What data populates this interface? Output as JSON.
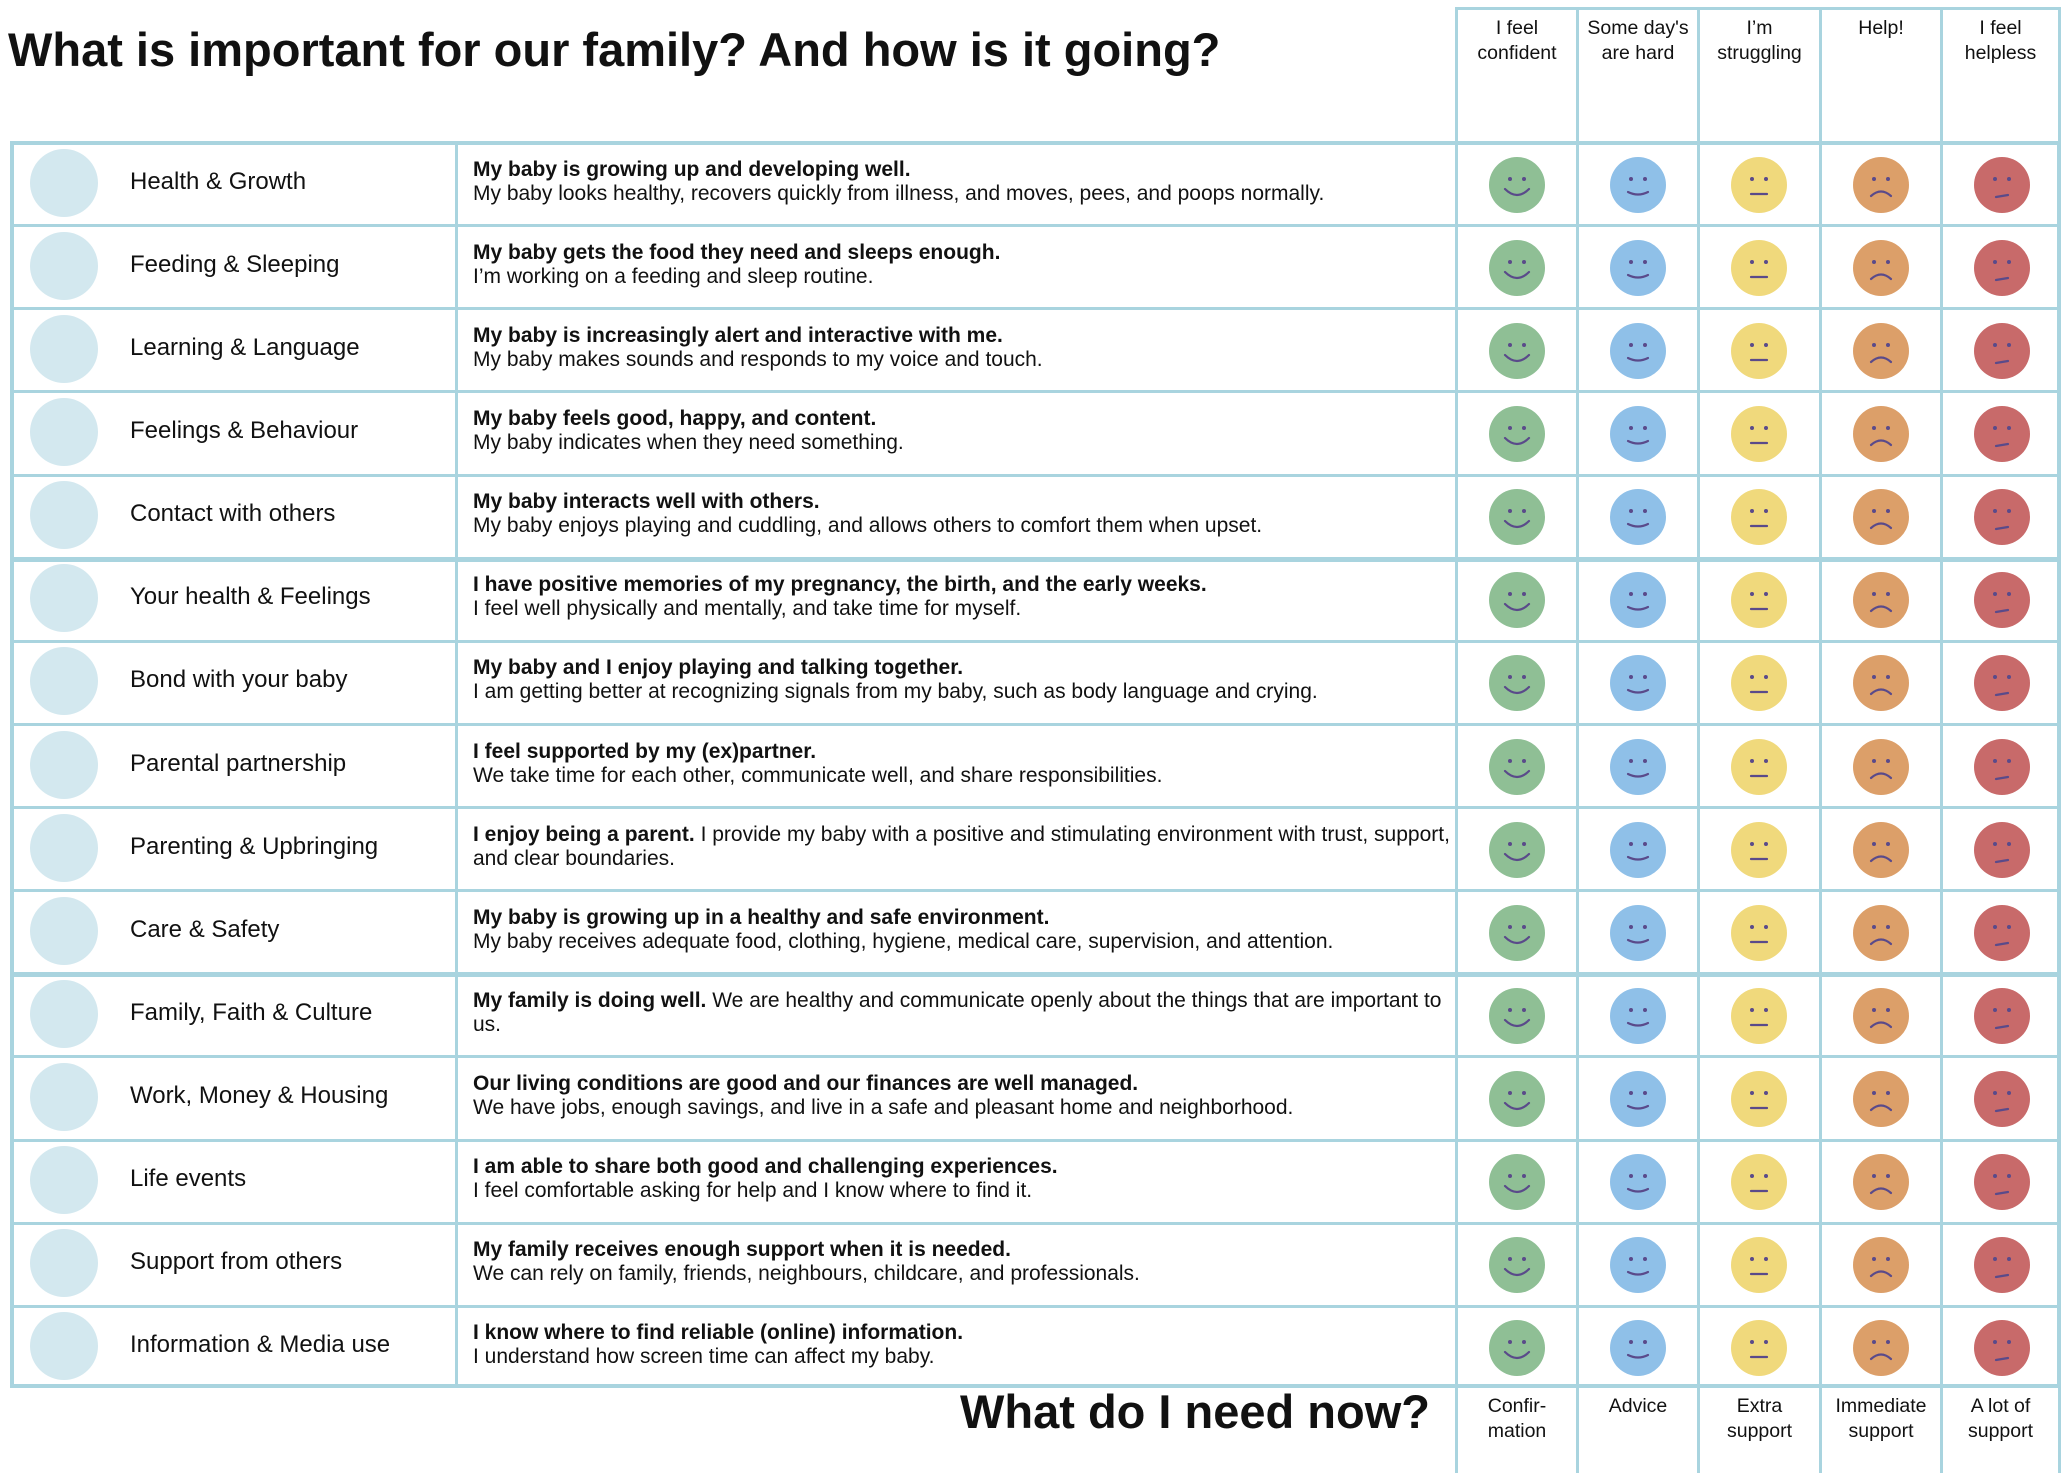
{
  "header": {
    "title": "What is important for our family? And how is it going?",
    "columns": [
      "I feel confident",
      "Some day's are hard",
      "I’m struggling",
      "Help!",
      "I feel helpless"
    ]
  },
  "rows": [
    {
      "topic": "Health & Growth",
      "bold": "My baby is growing up and developing well.",
      "text": "My baby looks healthy, recovers quickly from illness, and moves, pees, and poops normally."
    },
    {
      "topic": "Feeding & Sleeping",
      "bold": "My baby gets the food they need and sleeps enough.",
      "text": "I’m working on a feeding and sleep routine."
    },
    {
      "topic": "Learning & Language",
      "bold": "My baby is increasingly alert and interactive with me.",
      "text": "My baby makes sounds and responds to my voice and touch."
    },
    {
      "topic": "Feelings & Behaviour",
      "bold": "My baby feels good, happy, and content.",
      "text": "My baby indicates when they need something."
    },
    {
      "topic": "Contact with others",
      "bold": "My baby interacts well with others.",
      "text": "My baby enjoys playing and cuddling, and allows others to comfort them when upset."
    },
    {
      "topic": "Your health & Feelings",
      "bold": "I have positive memories of my pregnancy, the birth, and the early weeks.",
      "text": "I feel well physically and mentally, and take time for myself."
    },
    {
      "topic": "Bond with your baby",
      "bold": "My baby and I enjoy playing and talking together.",
      "text": "I am getting better at recognizing signals from my baby, such as body language and crying."
    },
    {
      "topic": "Parental partnership",
      "bold": "I feel supported by my (ex)partner.",
      "text": "We take time for each other, communicate well, and share responsibilities."
    },
    {
      "topic": "Parenting & Upbringing",
      "bold": "I enjoy being a parent.",
      "text": "I provide my baby with a positive and stimulating environment with trust, support, and clear boundaries."
    },
    {
      "topic": "Care & Safety",
      "bold": "My baby is growing up in a healthy and safe environment.",
      "text": "My baby receives adequate food, clothing, hygiene, medical care, supervision, and attention."
    },
    {
      "topic": "Family, Faith & Culture",
      "bold": "My family is doing well.",
      "text": "We are healthy and communicate openly about the things that are important to us."
    },
    {
      "topic": "Work, Money & Housing",
      "bold": "Our living conditions are good and our finances are well managed.",
      "text": "We have jobs, enough savings, and live in a safe and pleasant home and neighborhood."
    },
    {
      "topic": "Life events",
      "bold": "I am able to share both good and challenging experiences.",
      "text": "I feel comfortable asking for help and I know where to find it."
    },
    {
      "topic": "Support from others",
      "bold": "My family receives enough support when it is needed.",
      "text": "We can rely on family, friends, neighbours, childcare, and professionals."
    },
    {
      "topic": "Information & Media use",
      "bold": "I know where to find reliable (online) information.",
      "text": "I understand how screen time can affect my baby."
    }
  ],
  "footer": {
    "title": "What do I need now?",
    "columns": [
      "Confir-mation",
      "Advice",
      "Extra support",
      "Immediate support",
      "A lot of support"
    ]
  }
}
